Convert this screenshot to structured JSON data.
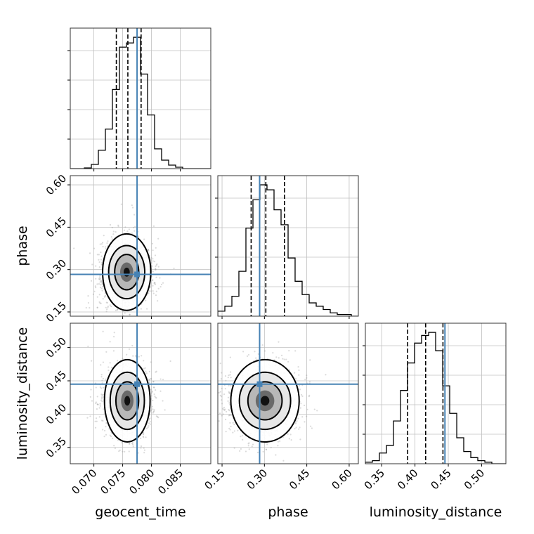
{
  "chart_data": {
    "type": "corner",
    "parameters": [
      "geocent_time",
      "phase",
      "luminosity_distance"
    ],
    "axis_labels": {
      "x": [
        "geocent_time",
        "phase",
        "luminosity_distance"
      ],
      "y": [
        "phase",
        "luminosity_distance"
      ]
    },
    "ranges": {
      "geocent_time": [
        0.0659,
        0.0903
      ],
      "phase": [
        0.135,
        0.6325
      ],
      "luminosity_distance": [
        0.3255,
        0.5365
      ]
    },
    "ticks": {
      "geocent_time": {
        "values": [
          0.07,
          0.075,
          0.08,
          0.085
        ],
        "labels": [
          "0.070",
          "0.075",
          "0.080",
          "0.085"
        ]
      },
      "phase": {
        "values": [
          0.15,
          0.3,
          0.45,
          0.6
        ],
        "labels": [
          "0.15",
          "0.30",
          "0.45",
          "0.60"
        ]
      },
      "luminosity_distance": {
        "values": [
          0.35,
          0.4,
          0.45,
          0.5
        ],
        "labels": [
          "0.35",
          "0.40",
          "0.45",
          "0.50"
        ]
      }
    },
    "truths": {
      "geocent_time": 0.0775,
      "phase": 0.283,
      "luminosity_distance": 0.445
    },
    "quantiles": {
      "geocent_time": [
        0.0739,
        0.0759,
        0.0782
      ],
      "phase": [
        0.253,
        0.305,
        0.371
      ],
      "luminosity_distance": [
        0.389,
        0.416,
        0.442
      ]
    },
    "histograms": {
      "geocent_time": {
        "edges": [
          0.0659,
          0.06712,
          0.06834,
          0.06956,
          0.07078,
          0.072,
          0.07322,
          0.07444,
          0.07566,
          0.07688,
          0.0781,
          0.07932,
          0.08054,
          0.08176,
          0.08298,
          0.0842,
          0.08542,
          0.08664,
          0.08786,
          0.08908,
          0.0903
        ],
        "counts": [
          0,
          0,
          0.5,
          3,
          13,
          28,
          56,
          86,
          89,
          93,
          67,
          38,
          14,
          6,
          2.5,
          1,
          0,
          0,
          0,
          0
        ]
      },
      "phase": {
        "edges": [
          0.135,
          0.1599,
          0.1848,
          0.2096,
          0.2345,
          0.2594,
          0.2843,
          0.3091,
          0.334,
          0.3589,
          0.3838,
          0.4086,
          0.4335,
          0.4584,
          0.4833,
          0.5081,
          0.533,
          0.5579,
          0.5828,
          0.6076,
          0.6325
        ],
        "counts": [
          3,
          6,
          12,
          27,
          53,
          70,
          79,
          76,
          64,
          55,
          35,
          21,
          13,
          8,
          6,
          4,
          2,
          1,
          1,
          0
        ]
      },
      "luminosity_distance": {
        "edges": [
          0.3255,
          0.3361,
          0.3466,
          0.3572,
          0.3677,
          0.3783,
          0.3888,
          0.3994,
          0.4099,
          0.4205,
          0.431,
          0.4416,
          0.4521,
          0.4627,
          0.4732,
          0.4838,
          0.4943,
          0.5049,
          0.5154,
          0.526,
          0.5365
        ],
        "counts": [
          1,
          2,
          7,
          12,
          28,
          48,
          66,
          79,
          84,
          86,
          74,
          51,
          33,
          17,
          8,
          4,
          2,
          1,
          0,
          0
        ]
      }
    },
    "pairs": [
      {
        "x": "geocent_time",
        "y": "phase",
        "mean": [
          0.0757,
          0.291
        ],
        "sd": [
          0.0019,
          0.057
        ]
      },
      {
        "x": "geocent_time",
        "y": "luminosity_distance",
        "mean": [
          0.0758,
          0.42
        ],
        "sd": [
          0.0018,
          0.026
        ]
      },
      {
        "x": "phase",
        "y": "luminosity_distance",
        "mean": [
          0.302,
          0.42
        ],
        "sd": [
          0.055,
          0.026
        ]
      }
    ],
    "grid": true,
    "colors": {
      "truth": "#4682b4",
      "hist": "#000000",
      "grid": "#c0c0c0",
      "points": "#999999"
    }
  }
}
